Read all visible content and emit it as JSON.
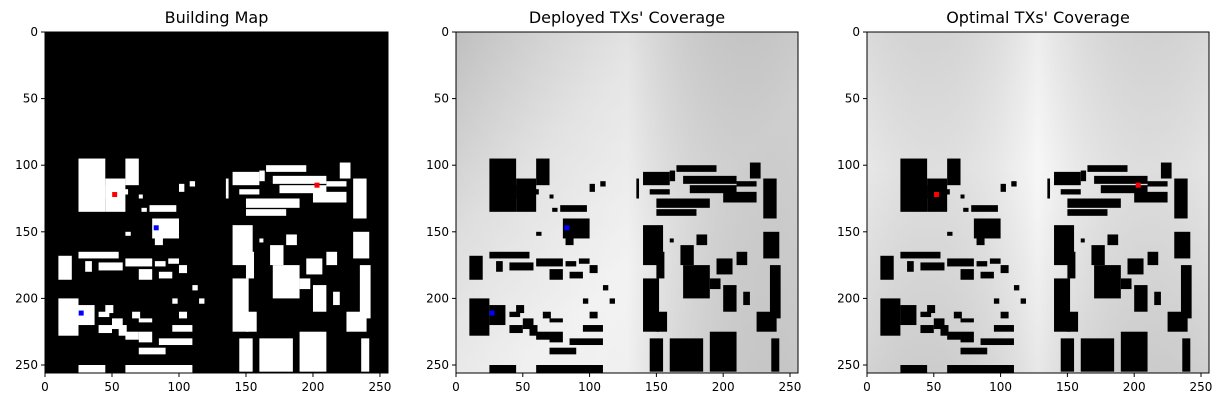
{
  "chart_data": [
    {
      "type": "heatmap",
      "title": "Building Map",
      "xlim": [
        0,
        256
      ],
      "ylim": [
        256,
        0
      ],
      "x_ticks": [
        0,
        50,
        100,
        150,
        200,
        250
      ],
      "y_ticks": [
        0,
        50,
        100,
        150,
        200,
        250
      ],
      "background_color": "#000000",
      "building_color": "#ffffff",
      "markers": [
        {
          "x": 52,
          "y": 122,
          "color": "#ff0000"
        },
        {
          "x": 203,
          "y": 115,
          "color": "#ff0000"
        },
        {
          "x": 83,
          "y": 147,
          "color": "#0000ff"
        },
        {
          "x": 27,
          "y": 211,
          "color": "#0000ff"
        }
      ]
    },
    {
      "type": "heatmap",
      "title": "Deployed TXs' Coverage",
      "xlim": [
        0,
        256
      ],
      "ylim": [
        256,
        0
      ],
      "x_ticks": [
        0,
        50,
        100,
        150,
        200,
        250
      ],
      "y_ticks": [
        0,
        50,
        100,
        150,
        200,
        250
      ],
      "colormap": "grayscale",
      "building_color": "#000000",
      "markers": [
        {
          "x": 83,
          "y": 147,
          "color": "#0000ff"
        },
        {
          "x": 27,
          "y": 211,
          "color": "#0000ff"
        }
      ]
    },
    {
      "type": "heatmap",
      "title": "Optimal TXs' Coverage",
      "xlim": [
        0,
        256
      ],
      "ylim": [
        256,
        0
      ],
      "x_ticks": [
        0,
        50,
        100,
        150,
        200,
        250
      ],
      "y_ticks": [
        0,
        50,
        100,
        150,
        200,
        250
      ],
      "colormap": "grayscale",
      "building_color": "#000000",
      "markers": [
        {
          "x": 52,
          "y": 122,
          "color": "#ff0000"
        },
        {
          "x": 203,
          "y": 115,
          "color": "#ff0000"
        }
      ]
    }
  ]
}
